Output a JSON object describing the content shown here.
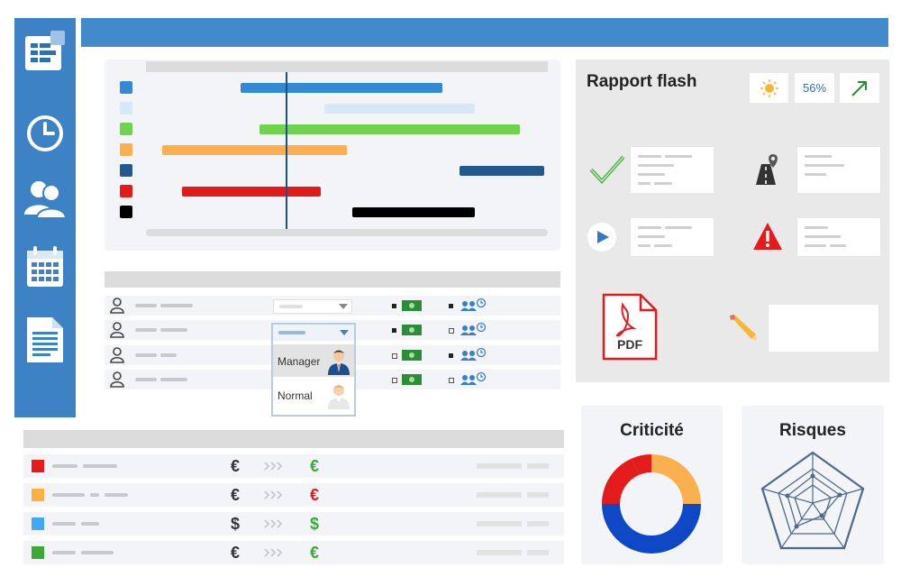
{
  "flash": {
    "title": "Rapport flash",
    "percent": "56%"
  },
  "dropdown": {
    "options": [
      "Manager",
      "Normal"
    ]
  },
  "criticite": {
    "title": "Criticité"
  },
  "risques": {
    "title": "Risques"
  },
  "pdf": {
    "label": "PDF"
  },
  "costs": [
    {
      "color": "#e31b1b",
      "from": "€",
      "to": "€",
      "to_color": "#3aaa35"
    },
    {
      "color": "#fbb040",
      "from": "€",
      "to": "€",
      "to_color": "#e31b1b"
    },
    {
      "color": "#3fa9f5",
      "from": "$",
      "to": "$",
      "to_color": "#3aaa35"
    },
    {
      "color": "#3aaa35",
      "from": "€",
      "to": "€",
      "to_color": "#3aaa35"
    }
  ],
  "colors": {
    "accent": "#428bca",
    "sidebar": "#3c82c4"
  }
}
